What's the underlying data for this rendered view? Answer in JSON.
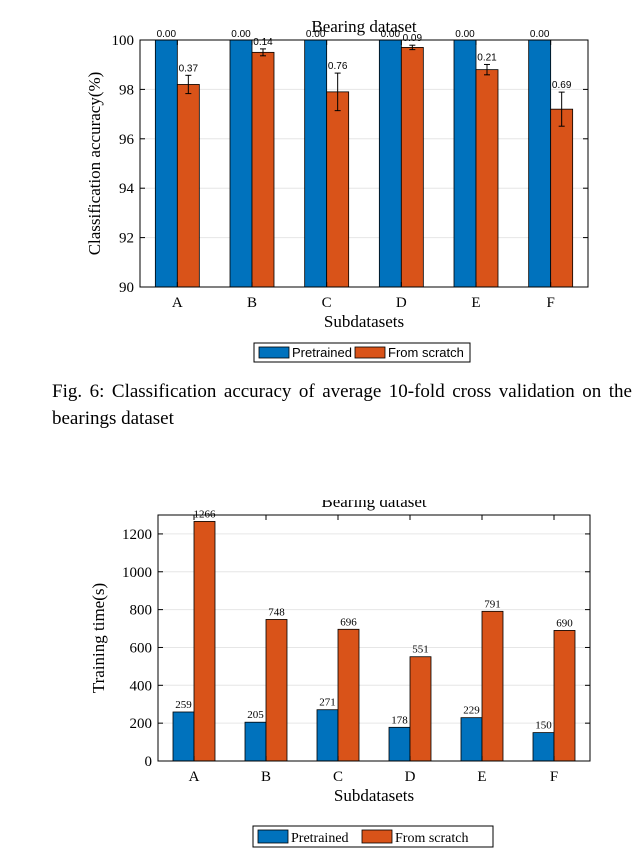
{
  "colors": {
    "pretrained": "#0072BD",
    "scratch": "#D95319",
    "grid": "#e6e6e6"
  },
  "chart_data": [
    {
      "type": "bar",
      "title": "Bearing dataset",
      "xlabel": "Subdatasets",
      "ylabel": "Classification accuracy(%)",
      "ylim": [
        90,
        100
      ],
      "yticks": [
        90,
        92,
        94,
        96,
        98,
        100
      ],
      "grid": true,
      "legend_position": "bottom-center",
      "categories": [
        "A",
        "B",
        "C",
        "D",
        "E",
        "F"
      ],
      "series": [
        {
          "name": "Pretrained",
          "values": [
            100,
            100,
            100,
            100,
            100,
            100
          ],
          "errors": [
            0,
            0,
            0,
            0,
            0,
            0
          ],
          "labels": [
            "0.00",
            "0.00",
            "0.00",
            "0.00",
            "0.00",
            "0.00"
          ]
        },
        {
          "name": "From scratch",
          "values": [
            98.2,
            99.5,
            97.9,
            99.7,
            98.8,
            97.2
          ],
          "errors": [
            0.37,
            0.14,
            0.76,
            0.09,
            0.21,
            0.69
          ],
          "labels": [
            "0.37",
            "0.14",
            "0.76",
            "0.09",
            "0.21",
            "0.69"
          ]
        }
      ]
    },
    {
      "type": "bar",
      "title": "Bearing dataset",
      "xlabel": "Subdatasets",
      "ylabel": "Training time(s)",
      "ylim": [
        0,
        1300
      ],
      "yticks": [
        0,
        200,
        400,
        600,
        800,
        1000,
        1200
      ],
      "grid": true,
      "legend_position": "bottom-center",
      "categories": [
        "A",
        "B",
        "C",
        "D",
        "E",
        "F"
      ],
      "series": [
        {
          "name": "Pretrained",
          "values": [
            259,
            205,
            271,
            178,
            229,
            150
          ],
          "labels": [
            "259",
            "205",
            "271",
            "178",
            "229",
            "150"
          ]
        },
        {
          "name": "From scratch",
          "values": [
            1266,
            748,
            696,
            551,
            791,
            690
          ],
          "labels": [
            "1266",
            "748",
            "696",
            "551",
            "791",
            "690"
          ]
        }
      ]
    }
  ],
  "caption": "Fig. 6: Classification accuracy of average 10-fold cross validation on the bearings dataset"
}
